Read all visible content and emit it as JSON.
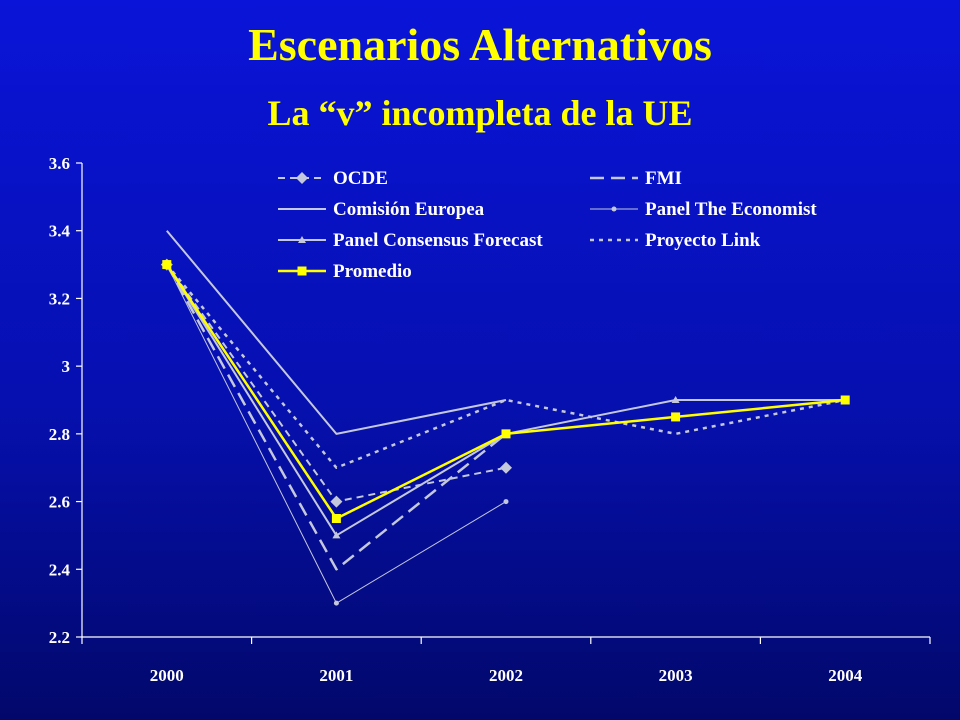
{
  "header": {
    "title": "Escenarios Alternativos",
    "subtitle": "La “v” incompleta de la UE"
  },
  "colors": {
    "title": "#ffff00",
    "axis": "#ffffff",
    "series_default": "#c4c8dc",
    "promedio": "#ffff00"
  },
  "chart_data": {
    "type": "line",
    "x": [
      "2000",
      "2001",
      "2002",
      "2003",
      "2004"
    ],
    "ylim": [
      2.2,
      3.6
    ],
    "yticks": [
      "2.2",
      "2.4",
      "2.6",
      "2.8",
      "3",
      "3.2",
      "3.4",
      "3.6"
    ],
    "grid": false,
    "legend_position": "top",
    "series": [
      {
        "name": "OCDE",
        "values": [
          3.3,
          2.6,
          2.7,
          null,
          null
        ],
        "style": "dashed",
        "marker": "diamond"
      },
      {
        "name": "FMI",
        "values": [
          3.3,
          2.4,
          2.8,
          null,
          null
        ],
        "style": "long-dash",
        "marker": "none"
      },
      {
        "name": "Comisión Europea",
        "values": [
          3.4,
          2.8,
          2.9,
          null,
          null
        ],
        "style": "solid",
        "marker": "none"
      },
      {
        "name": "Panel The Economist",
        "values": [
          3.3,
          2.3,
          2.6,
          null,
          null
        ],
        "style": "thin",
        "marker": "dot"
      },
      {
        "name": "Panel Consensus Forecast",
        "values": [
          3.3,
          2.5,
          2.8,
          2.9,
          2.9
        ],
        "style": "solid",
        "marker": "triangle"
      },
      {
        "name": "Proyecto Link",
        "values": [
          3.3,
          2.7,
          2.9,
          2.8,
          2.9
        ],
        "style": "dotted",
        "marker": "none"
      },
      {
        "name": "Promedio",
        "values": [
          3.3,
          2.55,
          2.8,
          2.85,
          2.9
        ],
        "style": "bold",
        "marker": "square"
      }
    ]
  }
}
